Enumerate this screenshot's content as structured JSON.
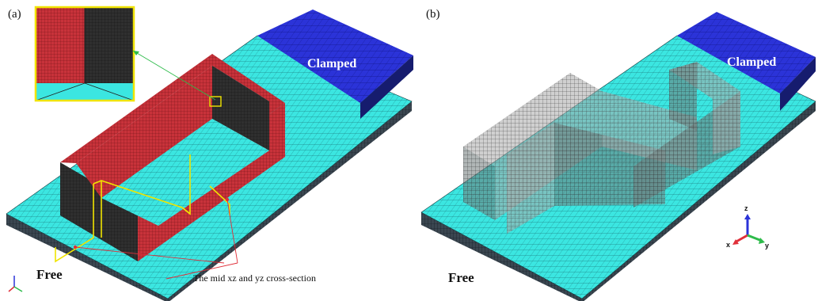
{
  "panel_a": {
    "tag": "(a)",
    "clamped_label": "Clamped",
    "free_label": "Free",
    "annotation": "The mid xz and yz cross-section"
  },
  "panel_b": {
    "tag": "(b)",
    "clamped_label": "Clamped",
    "free_label": "Free"
  },
  "axes_triad": {
    "z": "z",
    "x": "x",
    "y": "y"
  },
  "colors": {
    "plate": "#3be6e1",
    "plate_side": "#1f2a33",
    "clamped": "#2b33d8",
    "wall_red": "#c8323a",
    "wall_dark": "#2b2b2b",
    "highlight": "#f0e400",
    "pointer_red": "#e0303a",
    "pointer_green": "#2dbb4a",
    "ghost_wall": "#9a9a9a"
  }
}
